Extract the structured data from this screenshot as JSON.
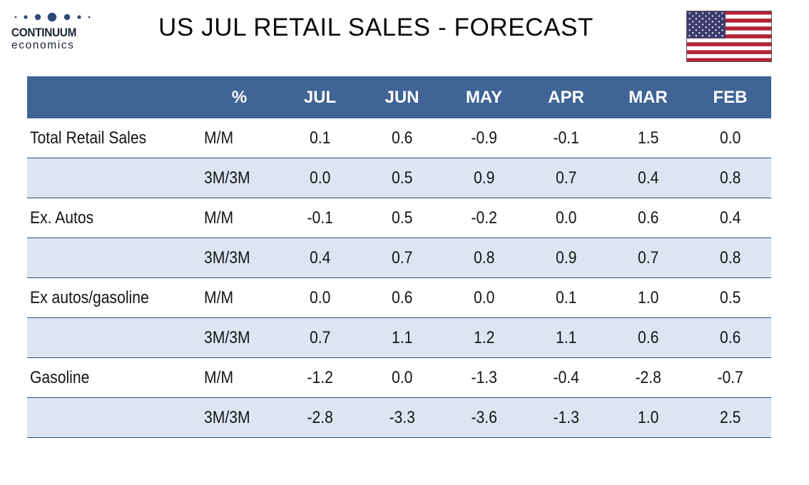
{
  "logo": {
    "brand": "CONTINUUM",
    "sub": "economics"
  },
  "title": "US JUL RETAIL SALES - FORECAST",
  "table": {
    "headers": [
      "%",
      "JUL",
      "JUN",
      "MAY",
      "APR",
      "MAR",
      "FEB"
    ],
    "rows": [
      {
        "label": "Total Retail Sales",
        "unit": "M/M",
        "values": [
          "0.1",
          "0.6",
          "-0.9",
          "-0.1",
          "1.5",
          "0.0"
        ]
      },
      {
        "label": "",
        "unit": "3M/3M",
        "values": [
          "0.0",
          "0.5",
          "0.9",
          "0.7",
          "0.4",
          "0.8"
        ]
      },
      {
        "label": "Ex. Autos",
        "unit": "M/M",
        "values": [
          "-0.1",
          "0.5",
          "-0.2",
          "0.0",
          "0.6",
          "0.4"
        ]
      },
      {
        "label": "",
        "unit": "3M/3M",
        "values": [
          "0.4",
          "0.7",
          "0.8",
          "0.9",
          "0.7",
          "0.8"
        ]
      },
      {
        "label": "Ex autos/gasoline",
        "unit": "M/M",
        "values": [
          "0.0",
          "0.6",
          "0.0",
          "0.1",
          "1.0",
          "0.5"
        ]
      },
      {
        "label": "",
        "unit": "3M/3M",
        "values": [
          "0.7",
          "1.1",
          "1.2",
          "1.1",
          "0.6",
          "0.6"
        ]
      },
      {
        "label": "Gasoline",
        "unit": "M/M",
        "values": [
          "-1.2",
          "0.0",
          "-1.3",
          "-0.4",
          "-2.8",
          "-0.7"
        ]
      },
      {
        "label": "",
        "unit": "3M/3M",
        "values": [
          "-2.8",
          "-3.3",
          "-3.6",
          "-1.3",
          "1.0",
          "2.5"
        ]
      }
    ]
  },
  "colors": {
    "header_bg": "#3f6495",
    "row_shade": "#dce6f2",
    "rule": "#2a4d7c",
    "logo_dots": "#2e4a7a"
  },
  "icons": {
    "logo": "continuum-economics-logo",
    "flag": "us-flag-icon"
  }
}
